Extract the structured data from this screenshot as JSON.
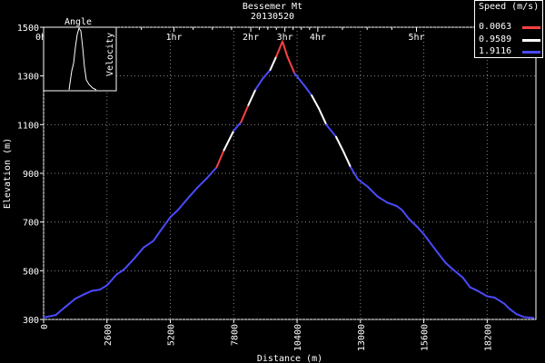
{
  "chart_data": {
    "type": "line",
    "title": "Bessemer Mt",
    "subtitle": "20130520",
    "xlabel": "Distance (m)",
    "ylabel": "Elevation (m)",
    "xlim": [
      0,
      20200
    ],
    "ylim": [
      300,
      1500
    ],
    "x_ticks": [
      0,
      2600,
      5200,
      7800,
      10400,
      13000,
      15600,
      18200
    ],
    "y_ticks": [
      300,
      500,
      700,
      900,
      1100,
      1300,
      1500
    ],
    "time_ticks": [
      {
        "label": "0hr",
        "distance": 0
      },
      {
        "label": "1hr",
        "distance": 5350
      },
      {
        "label": "2hr",
        "distance": 8500
      },
      {
        "label": "3hr",
        "distance": 9900
      },
      {
        "label": "4hr",
        "distance": 11250
      },
      {
        "label": "5hr",
        "distance": 15300
      }
    ],
    "speed_legend": {
      "title": "Speed (m/s)",
      "entries": [
        {
          "label": "0.0063",
          "color": "#ff4040"
        },
        {
          "label": "0.9589",
          "color": "#ffffff"
        },
        {
          "label": "1.9116",
          "color": "#4a4aff"
        }
      ]
    },
    "inset": {
      "label_left": "Angle",
      "label_right": "Velocity"
    },
    "series": [
      {
        "x": [
          0,
          500,
          900,
          1300,
          1700,
          2000,
          2300,
          2600,
          3000,
          3300,
          3700,
          4100,
          4500,
          4800,
          5200,
          5500,
          5900,
          6300,
          6700,
          7100,
          7400,
          7800,
          8100,
          8400,
          8700,
          9000,
          9300,
          9550,
          9800,
          10000,
          10300,
          10700,
          11000,
          11300,
          11600,
          12000,
          12300,
          12600,
          12900,
          13300,
          13700,
          14100,
          14500,
          14700,
          15000,
          15300,
          15600,
          15900,
          16200,
          16500,
          16800,
          17200,
          17500,
          17800,
          18200,
          18500,
          18900,
          19100,
          19400,
          19700,
          20100
        ],
        "y": [
          308,
          318,
          352,
          385,
          405,
          418,
          422,
          440,
          485,
          505,
          548,
          595,
          622,
          665,
          720,
          748,
          795,
          840,
          880,
          925,
          995,
          1075,
          1110,
          1180,
          1245,
          1290,
          1325,
          1380,
          1442,
          1380,
          1310,
          1260,
          1220,
          1165,
          1100,
          1050,
          990,
          925,
          875,
          845,
          805,
          780,
          765,
          750,
          712,
          683,
          650,
          610,
          570,
          532,
          505,
          472,
          432,
          418,
          395,
          390,
          365,
          345,
          322,
          310,
          306
        ]
      }
    ]
  }
}
